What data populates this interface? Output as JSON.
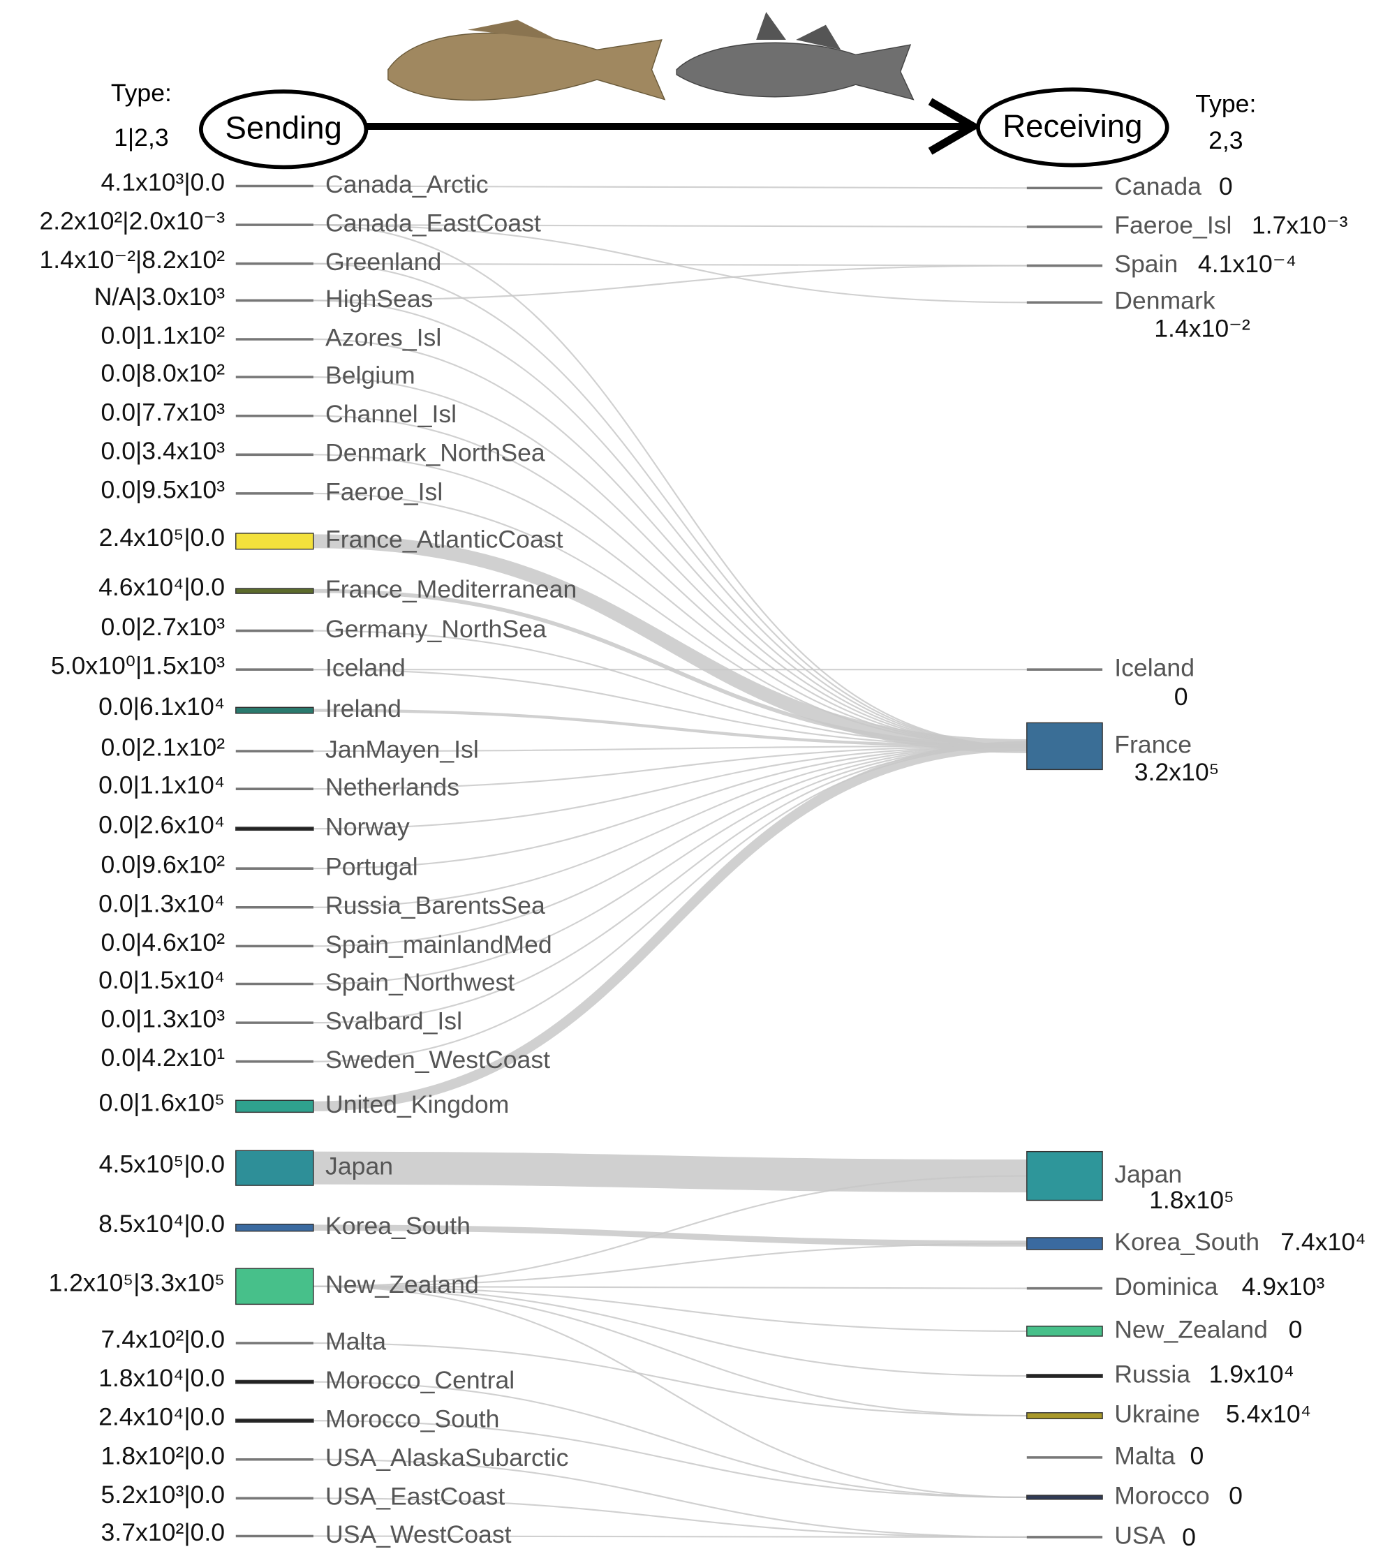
{
  "header": {
    "sending": "Sending",
    "receiving": "Receiving",
    "sending_type_title": "Type:",
    "sending_type": "1|2,3",
    "receiving_type_title": "Type:",
    "receiving_type": "2,3"
  },
  "senders": [
    {
      "name": "Canada_Arctic",
      "label": "4.1x10³|0.0",
      "targets": [
        "Canada"
      ]
    },
    {
      "name": "Canada_EastCoast",
      "label": "2.2x10²|2.0x10⁻³",
      "targets": [
        "Faeroe_Isl",
        "Denmark",
        "France"
      ]
    },
    {
      "name": "Greenland",
      "label": "1.4x10⁻²|8.2x10²",
      "targets": [
        "Spain",
        "France"
      ]
    },
    {
      "name": "HighSeas",
      "label": "N/A|3.0x10³",
      "targets": [
        "Spain",
        "France"
      ]
    },
    {
      "name": "Azores_Isl",
      "label": "0.0|1.1x10²",
      "targets": [
        "France"
      ]
    },
    {
      "name": "Belgium",
      "label": "0.0|8.0x10²",
      "targets": [
        "France"
      ]
    },
    {
      "name": "Channel_Isl",
      "label": "0.0|7.7x10³",
      "targets": [
        "France"
      ]
    },
    {
      "name": "Denmark_NorthSea",
      "label": "0.0|3.4x10³",
      "targets": [
        "France"
      ]
    },
    {
      "name": "Faeroe_Isl",
      "label": "0.0|9.5x10³",
      "targets": [
        "France"
      ]
    },
    {
      "name": "France_AtlanticCoast",
      "label": "2.4x10⁵|0.0",
      "color": "#f3e13c",
      "targets": [
        "France"
      ]
    },
    {
      "name": "France_Mediterranean",
      "label": "4.6x10⁴|0.0",
      "color": "#5c6b2c",
      "targets": [
        "France"
      ]
    },
    {
      "name": "Germany_NorthSea",
      "label": "0.0|2.7x10³",
      "targets": [
        "France"
      ]
    },
    {
      "name": "Iceland",
      "label": "5.0x10⁰|1.5x10³",
      "targets": [
        "Iceland",
        "France"
      ]
    },
    {
      "name": "Ireland",
      "label": "0.0|6.1x10⁴",
      "color": "#2a7a6e",
      "targets": [
        "France"
      ]
    },
    {
      "name": "JanMayen_Isl",
      "label": "0.0|2.1x10²",
      "targets": [
        "France"
      ]
    },
    {
      "name": "Netherlands",
      "label": "0.0|1.1x10⁴",
      "targets": [
        "France"
      ]
    },
    {
      "name": "Norway",
      "label": "0.0|2.6x10⁴",
      "color": "#222222",
      "targets": [
        "France"
      ]
    },
    {
      "name": "Portugal",
      "label": "0.0|9.6x10²",
      "targets": [
        "France"
      ]
    },
    {
      "name": "Russia_BarentsSea",
      "label": "0.0|1.3x10⁴",
      "targets": [
        "France"
      ]
    },
    {
      "name": "Spain_mainlandMed",
      "label": "0.0|4.6x10²",
      "targets": [
        "France"
      ]
    },
    {
      "name": "Spain_Northwest",
      "label": "0.0|1.5x10⁴",
      "targets": [
        "France"
      ]
    },
    {
      "name": "Svalbard_Isl",
      "label": "0.0|1.3x10³",
      "targets": [
        "France"
      ]
    },
    {
      "name": "Sweden_WestCoast",
      "label": "0.0|4.2x10¹",
      "targets": [
        "France"
      ]
    },
    {
      "name": "United_Kingdom",
      "label": "0.0|1.6x10⁵",
      "color": "#2fa18e",
      "targets": [
        "France"
      ]
    },
    {
      "name": "Japan",
      "label": "4.5x10⁵|0.0",
      "color": "#2e8f98",
      "targets": [
        "Japan"
      ]
    },
    {
      "name": "Korea_South",
      "label": "8.5x10⁴|0.0",
      "color": "#3a6aa0",
      "targets": [
        "Korea_South"
      ]
    },
    {
      "name": "New_Zealand",
      "label": "1.2x10⁵|3.3x10⁵",
      "color": "#47c08a",
      "targets": [
        "Japan",
        "Korea_South",
        "Dominica",
        "New_Zealand",
        "Russia",
        "Ukraine",
        "Morocco"
      ]
    },
    {
      "name": "Malta",
      "label": "7.4x10²|0.0",
      "targets": [
        "Ukraine"
      ]
    },
    {
      "name": "Morocco_Central",
      "label": "1.8x10⁴|0.0",
      "color": "#222222",
      "targets": [
        "Morocco"
      ]
    },
    {
      "name": "Morocco_South",
      "label": "2.4x10⁴|0.0",
      "color": "#222222",
      "targets": [
        "Morocco"
      ]
    },
    {
      "name": "USA_AlaskaSubarctic",
      "label": "1.8x10²|0.0",
      "targets": [
        "USA"
      ]
    },
    {
      "name": "USA_EastCoast",
      "label": "5.2x10³|0.0",
      "targets": [
        "USA"
      ]
    },
    {
      "name": "USA_WestCoast",
      "label": "3.7x10²|0.0",
      "targets": [
        "USA"
      ]
    }
  ],
  "receivers": [
    {
      "name": "Canada",
      "label": "0"
    },
    {
      "name": "Faeroe_Isl",
      "label": "1.7x10⁻³"
    },
    {
      "name": "Spain",
      "label": "4.1x10⁻⁴"
    },
    {
      "name": "Denmark",
      "label": "1.4x10⁻²"
    },
    {
      "name": "Iceland",
      "label": "0"
    },
    {
      "name": "France",
      "label": "3.2x10⁵",
      "color": "#3a6e96"
    },
    {
      "name": "Japan",
      "label": "1.8x10⁵",
      "color": "#2e969a"
    },
    {
      "name": "Korea_South",
      "label": "7.4x10⁴",
      "color": "#3a6aa0"
    },
    {
      "name": "Dominica",
      "label": "4.9x10³"
    },
    {
      "name": "New_Zealand",
      "label": "0",
      "color": "#47c08a"
    },
    {
      "name": "Russia",
      "label": "1.9x10⁴",
      "color": "#222222"
    },
    {
      "name": "Ukraine",
      "label": "5.4x10⁴",
      "color": "#a8982a"
    },
    {
      "name": "Malta",
      "label": "0"
    },
    {
      "name": "Morocco",
      "label": "0",
      "color": "#303a55"
    },
    {
      "name": "USA",
      "label": "0"
    }
  ]
}
